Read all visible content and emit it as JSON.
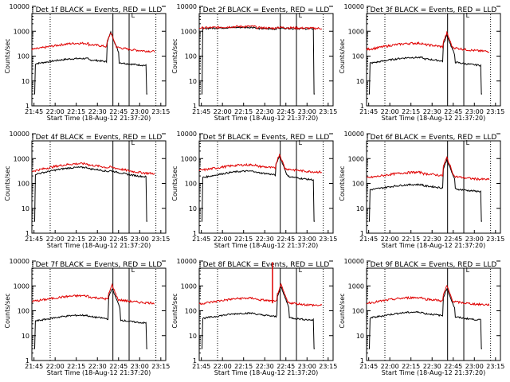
{
  "chart_data": [
    {
      "type": "line",
      "title": "Det 1f BLACK = Events, RED = LLD",
      "xlabel": "Start Time (18-Aug-12 21:37:20)",
      "ylabel": "Counts/sec",
      "yscale": "log",
      "ylim": [
        1,
        10000
      ],
      "xtick_labels": [
        "21:45",
        "22:00",
        "22:15",
        "22:30",
        "22:45",
        "23:00",
        "23:15"
      ],
      "ytick_labels": [
        "1",
        "10",
        "100",
        "1000",
        "10000"
      ],
      "marker": "L",
      "series": [
        {
          "color": "#000000",
          "x_min": [
            1.5,
            82
          ],
          "base": 40,
          "bump": 2,
          "spike_at": [
            56,
            900
          ],
          "bottom_cut": true
        },
        {
          "color": "#e00000",
          "x_min": [
            0,
            87
          ],
          "base": 150,
          "bump": 2.2,
          "spike_at": [
            56,
            900
          ]
        }
      ]
    },
    {
      "type": "line",
      "title": "Det 2f BLACK = Events, RED = LLD",
      "xlabel": "Start Time (18-Aug-12 21:37:20)",
      "ylabel": "Counts/sec",
      "yscale": "log",
      "ylim": [
        1,
        10000
      ],
      "xtick_labels": [
        "21:45",
        "22:00",
        "22:15",
        "22:30",
        "22:45",
        "23:00",
        "23:15"
      ],
      "ytick_labels": [
        "1",
        "10",
        "100",
        "1000",
        "10000"
      ],
      "marker": "L",
      "series": [
        {
          "color": "#000000",
          "x_min": [
            1.5,
            82
          ],
          "base": 1250,
          "bump": 1.15,
          "spike_at": null,
          "bottom_cut": true
        },
        {
          "color": "#e00000",
          "x_min": [
            0,
            87
          ],
          "base": 1300,
          "bump": 1.2,
          "spike_at": null
        }
      ]
    },
    {
      "type": "line",
      "title": "Det 3f BLACK = Events, RED = LLD",
      "xlabel": "Start Time (18-Aug-12 21:37:20)",
      "ylabel": "Counts/sec",
      "yscale": "log",
      "ylim": [
        1,
        10000
      ],
      "xtick_labels": [
        "21:45",
        "22:00",
        "22:15",
        "22:30",
        "22:45",
        "23:00",
        "23:15"
      ],
      "ytick_labels": [
        "1",
        "10",
        "100",
        "1000",
        "10000"
      ],
      "marker": "L",
      "series": [
        {
          "color": "#000000",
          "x_min": [
            1.5,
            82
          ],
          "base": 40,
          "bump": 2.2,
          "spike_at": [
            57,
            700
          ],
          "bottom_cut": true
        },
        {
          "color": "#e00000",
          "x_min": [
            0,
            87
          ],
          "base": 150,
          "bump": 2.2,
          "spike_at": [
            57,
            850
          ]
        }
      ]
    },
    {
      "type": "line",
      "title": "Det 4f BLACK = Events, RED = LLD",
      "xlabel": "Start Time (18-Aug-12 21:37:20)",
      "ylabel": "Counts/sec",
      "yscale": "log",
      "ylim": [
        1,
        10000
      ],
      "xtick_labels": [
        "21:45",
        "22:00",
        "22:15",
        "22:30",
        "22:45",
        "23:00",
        "23:15"
      ],
      "ytick_labels": [
        "1",
        "10",
        "100",
        "1000",
        "10000"
      ],
      "marker": "L",
      "series": [
        {
          "color": "#000000",
          "x_min": [
            1.5,
            82
          ],
          "base": 170,
          "bump": 2.6,
          "spike_at": null,
          "bottom_cut": true
        },
        {
          "color": "#e00000",
          "x_min": [
            0,
            87
          ],
          "base": 240,
          "bump": 2.6,
          "spike_at": null
        }
      ]
    },
    {
      "type": "line",
      "title": "Det 5f BLACK = Events, RED = LLD",
      "xlabel": "Start Time (18-Aug-12 21:37:20)",
      "ylabel": "Counts/sec",
      "yscale": "log",
      "ylim": [
        1,
        10000
      ],
      "xtick_labels": [
        "21:45",
        "22:00",
        "22:15",
        "22:30",
        "22:45",
        "23:00",
        "23:15"
      ],
      "ytick_labels": [
        "1",
        "10",
        "100",
        "1000",
        "10000"
      ],
      "marker": "L",
      "series": [
        {
          "color": "#000000",
          "x_min": [
            1.5,
            82
          ],
          "base": 130,
          "bump": 2.4,
          "spike_at": [
            57,
            1300
          ],
          "bottom_cut": true
        },
        {
          "color": "#e00000",
          "x_min": [
            0,
            87
          ],
          "base": 280,
          "bump": 2,
          "spike_at": [
            57,
            1500
          ]
        }
      ]
    },
    {
      "type": "line",
      "title": "Det 6f BLACK = Events, RED = LLD",
      "xlabel": "Start Time (18-Aug-12 21:37:20)",
      "ylabel": "Counts/sec",
      "yscale": "log",
      "ylim": [
        1,
        10000
      ],
      "xtick_labels": [
        "21:45",
        "22:00",
        "22:15",
        "22:30",
        "22:45",
        "23:00",
        "23:15"
      ],
      "ytick_labels": [
        "1",
        "10",
        "100",
        "1000",
        "10000"
      ],
      "marker": "L",
      "series": [
        {
          "color": "#000000",
          "x_min": [
            1.5,
            82
          ],
          "base": 45,
          "bump": 2,
          "spike_at": [
            57,
            900
          ],
          "bottom_cut": true
        },
        {
          "color": "#e00000",
          "x_min": [
            0,
            87
          ],
          "base": 140,
          "bump": 2,
          "spike_at": [
            57,
            1100
          ]
        }
      ]
    },
    {
      "type": "line",
      "title": "Det 7f BLACK = Events, RED = LLD",
      "xlabel": "Start Time (18-Aug-12 21:37:20)",
      "ylabel": "Counts/sec",
      "yscale": "log",
      "ylim": [
        1,
        10000
      ],
      "xtick_labels": [
        "21:45",
        "22:00",
        "22:15",
        "22:30",
        "22:45",
        "23:00",
        "23:15"
      ],
      "ytick_labels": [
        "1",
        "10",
        "100",
        "1000",
        "10000"
      ],
      "marker": "L",
      "series": [
        {
          "color": "#000000",
          "x_min": [
            1.5,
            82
          ],
          "base": 30,
          "bump": 2.2,
          "spike_at": [
            57,
            800
          ],
          "bottom_cut": true
        },
        {
          "color": "#e00000",
          "x_min": [
            0,
            87
          ],
          "base": 200,
          "bump": 2,
          "spike_at": [
            57,
            1100
          ]
        }
      ]
    },
    {
      "type": "line",
      "title": "Det 8f BLACK = Events, RED = LLD",
      "xlabel": "Start Time (18-Aug-12 21:37:20)",
      "ylabel": "Counts/sec",
      "yscale": "log",
      "ylim": [
        1,
        10000
      ],
      "xtick_labels": [
        "21:45",
        "22:00",
        "22:15",
        "22:30",
        "22:45",
        "23:00",
        "23:15"
      ],
      "ytick_labels": [
        "1",
        "10",
        "100",
        "1000",
        "10000"
      ],
      "marker": "L",
      "series": [
        {
          "color": "#000000",
          "x_min": [
            1.5,
            82
          ],
          "base": 40,
          "bump": 2,
          "spike_at": [
            58,
            900
          ],
          "bottom_cut": true
        },
        {
          "color": "#e00000",
          "x_min": [
            0,
            87
          ],
          "base": 160,
          "bump": 2,
          "spike_at": [
            58,
            1100
          ],
          "tall_at": 52
        }
      ]
    },
    {
      "type": "line",
      "title": "Det 9f BLACK = Events, RED = LLD",
      "xlabel": "Start Time (18-Aug-12 21:37:20)",
      "ylabel": "Counts/sec",
      "yscale": "log",
      "ylim": [
        1,
        10000
      ],
      "xtick_labels": [
        "21:45",
        "22:00",
        "22:15",
        "22:30",
        "22:45",
        "23:00",
        "23:15"
      ],
      "ytick_labels": [
        "1",
        "10",
        "100",
        "1000",
        "10000"
      ],
      "marker": "L",
      "series": [
        {
          "color": "#000000",
          "x_min": [
            1.5,
            82
          ],
          "base": 40,
          "bump": 2.2,
          "spike_at": [
            57,
            800
          ],
          "bottom_cut": true
        },
        {
          "color": "#e00000",
          "x_min": [
            0,
            87
          ],
          "base": 170,
          "bump": 2,
          "spike_at": [
            57,
            1000
          ]
        }
      ]
    }
  ]
}
